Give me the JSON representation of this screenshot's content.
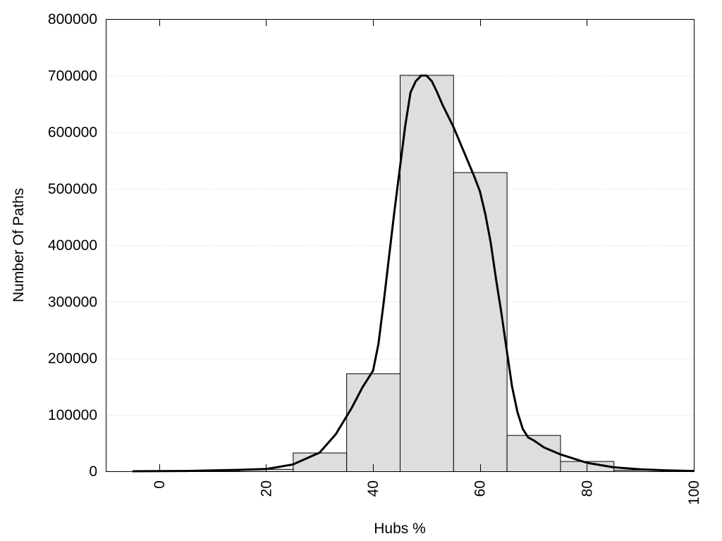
{
  "chart_data": {
    "type": "bar",
    "subtype": "histogram-with-density-curve",
    "xlabel": "Hubs %",
    "ylabel": "Number Of Paths",
    "xlim": [
      -10,
      100
    ],
    "ylim": [
      0,
      800000
    ],
    "x_ticks": [
      0,
      20,
      40,
      60,
      80,
      100
    ],
    "y_ticks": [
      0,
      100000,
      200000,
      300000,
      400000,
      500000,
      600000,
      700000,
      800000
    ],
    "grid": "horizontal-dotted",
    "bin_width": 10,
    "bars": [
      {
        "x": 0,
        "value": 500
      },
      {
        "x": 10,
        "value": 1500
      },
      {
        "x": 20,
        "value": 4000
      },
      {
        "x": 30,
        "value": 33000
      },
      {
        "x": 40,
        "value": 173000
      },
      {
        "x": 50,
        "value": 701000
      },
      {
        "x": 60,
        "value": 529000
      },
      {
        "x": 70,
        "value": 64000
      },
      {
        "x": 80,
        "value": 18000
      },
      {
        "x": 90,
        "value": 2500
      }
    ],
    "curve": {
      "x": [
        -5,
        5,
        10,
        15,
        20,
        25,
        30,
        33,
        36,
        38,
        40,
        41,
        42,
        43,
        44,
        45,
        46,
        47,
        48,
        49,
        50,
        51,
        52,
        53,
        55,
        57,
        59,
        60,
        61,
        62,
        63,
        64,
        65,
        66,
        67,
        68,
        69,
        70,
        72,
        75,
        80,
        85,
        90,
        95,
        100
      ],
      "y": [
        0,
        500,
        1500,
        2500,
        4000,
        12000,
        33000,
        65000,
        112000,
        148000,
        178000,
        225000,
        300000,
        380000,
        460000,
        535000,
        610000,
        670000,
        690000,
        700000,
        700000,
        690000,
        670000,
        648000,
        610000,
        565000,
        520000,
        495000,
        455000,
        405000,
        340000,
        280000,
        215000,
        150000,
        105000,
        75000,
        60000,
        55000,
        42000,
        30000,
        15000,
        7000,
        3500,
        1500,
        500
      ]
    }
  }
}
